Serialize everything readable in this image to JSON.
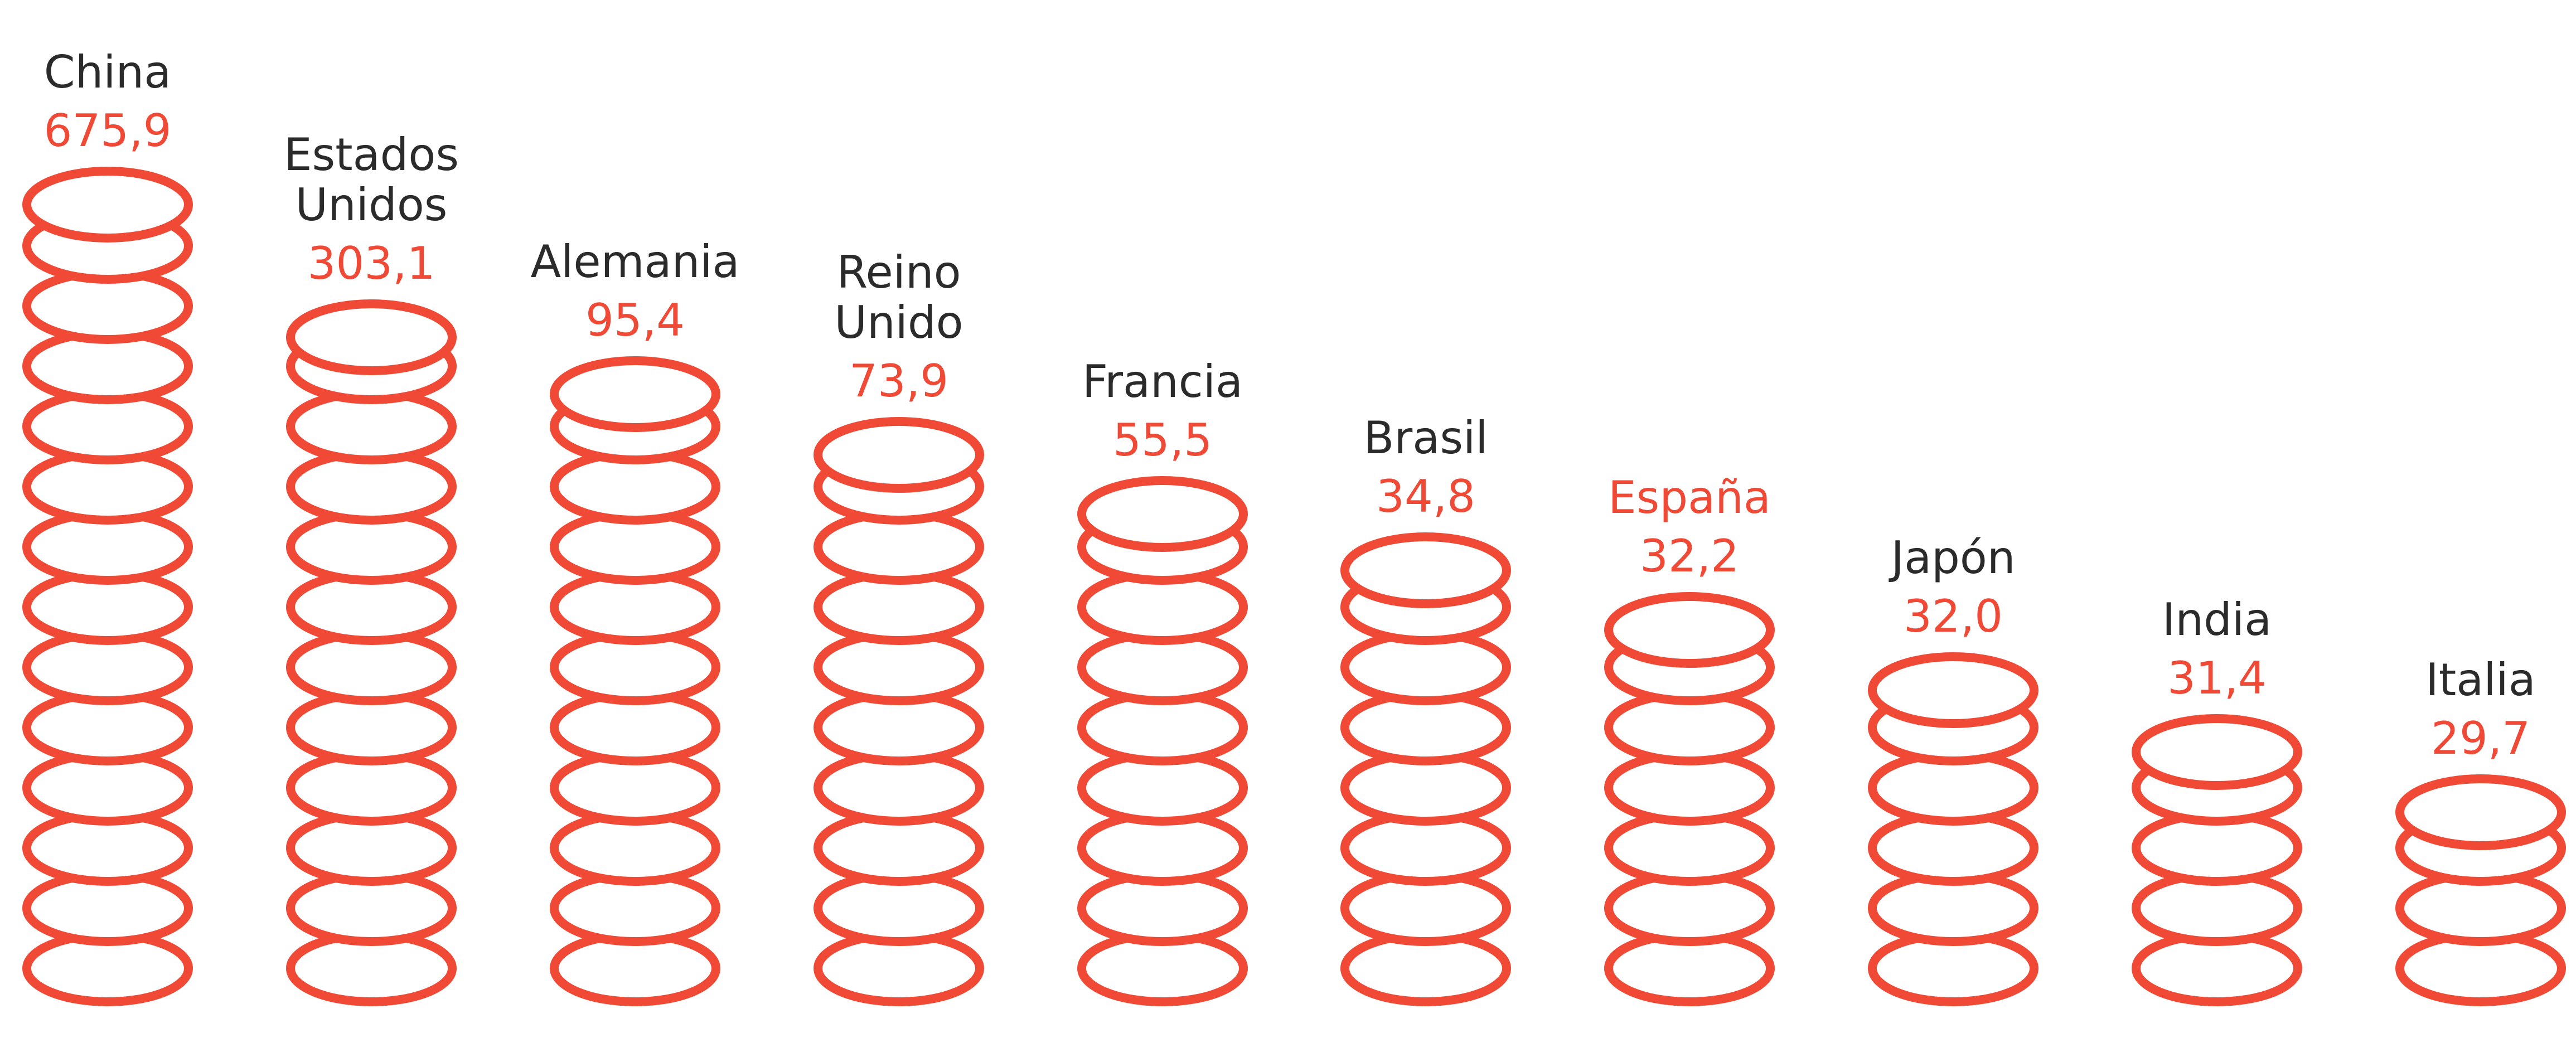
{
  "chart_data": {
    "type": "bar",
    "categories": [
      "China",
      "Estados Unidos",
      "Alemania",
      "Reino Unido",
      "Francia",
      "Brasil",
      "España",
      "Japón",
      "India",
      "Italia"
    ],
    "category_lines": [
      [
        "China"
      ],
      [
        "Estados",
        "Unidos"
      ],
      [
        "Alemania"
      ],
      [
        "Reino",
        "Unido"
      ],
      [
        "Francia"
      ],
      [
        "Brasil"
      ],
      [
        "España"
      ],
      [
        "Japón"
      ],
      [
        "India"
      ],
      [
        "Italia"
      ]
    ],
    "values": [
      675.9,
      303.1,
      95.4,
      73.9,
      55.5,
      34.8,
      32.2,
      32.0,
      31.4,
      29.7
    ],
    "value_labels": [
      "675,9",
      "303,1",
      "95,4",
      "73,9",
      "55,5",
      "34,8",
      "32,2",
      "32,0",
      "31,4",
      "29,7"
    ],
    "highlight": "España",
    "colors": {
      "accent": "#f04a36",
      "text": "#2b2b2b",
      "background": "#ffffff"
    },
    "mark_style": "stacked coins",
    "grid": false,
    "legend": "none"
  }
}
